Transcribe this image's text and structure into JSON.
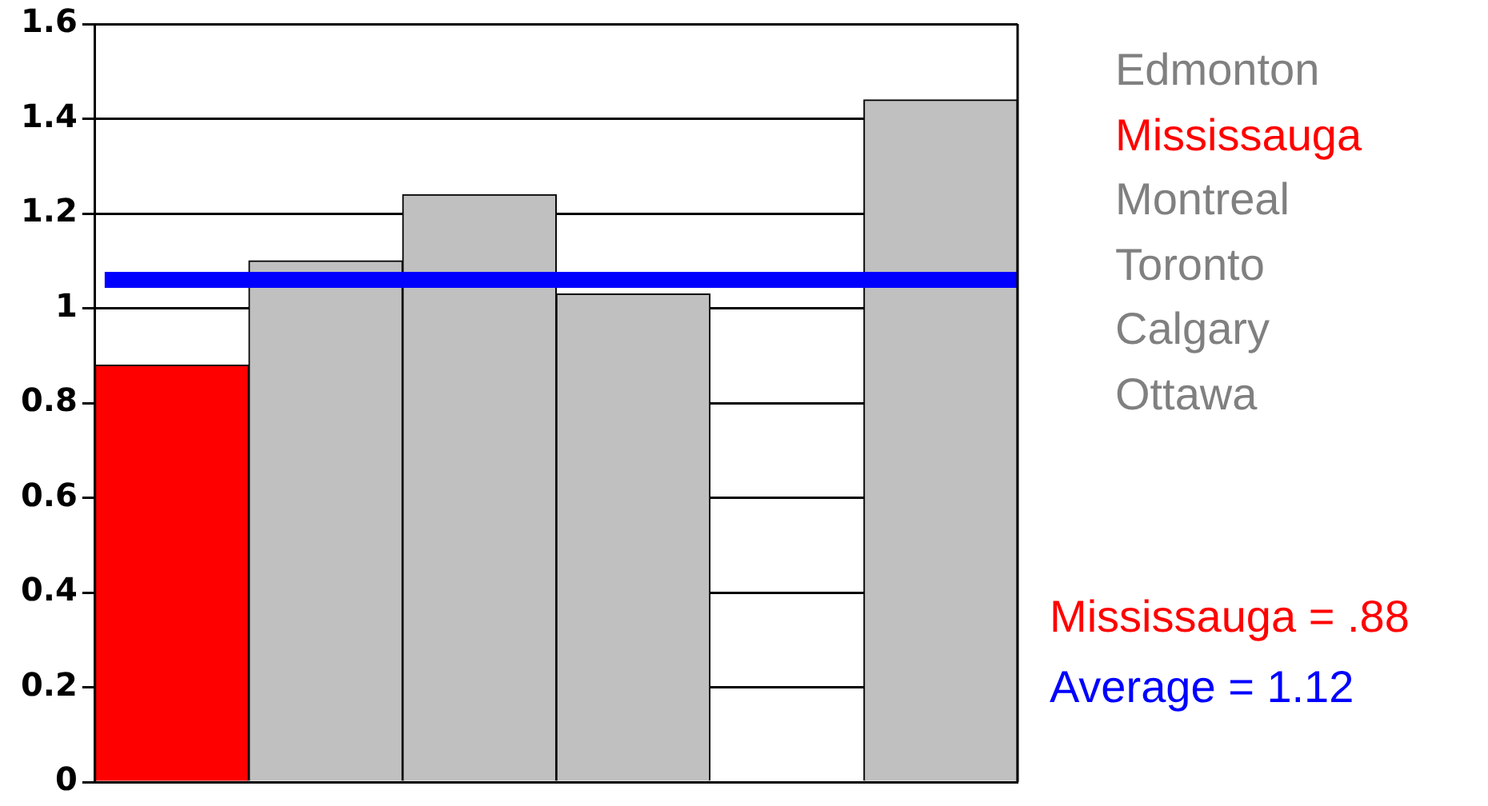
{
  "chart_data": {
    "type": "bar",
    "categories": [
      null,
      null,
      null,
      null,
      null,
      null
    ],
    "values": [
      0.88,
      1.1,
      1.24,
      1.03,
      null,
      1.44
    ],
    "colors": [
      "#ff0000",
      "#c0c0c0",
      "#c0c0c0",
      "#c0c0c0",
      "#c0c0c0",
      "#c0c0c0"
    ],
    "ylim": [
      0,
      1.6
    ],
    "yticks": [
      0,
      0.2,
      0.4,
      0.6,
      0.8,
      1,
      1.2,
      1.4,
      1.6
    ],
    "grid": "y",
    "ref_lines": [
      {
        "axis": "y",
        "value": 1.06,
        "color": "#0000ff"
      }
    ],
    "annotations": [
      "Edmonton",
      "Mississauga",
      "Montreal",
      "Toronto",
      "Calgary",
      "Ottawa",
      "Mississauga = .88",
      "Average = 1.12"
    ]
  }
}
